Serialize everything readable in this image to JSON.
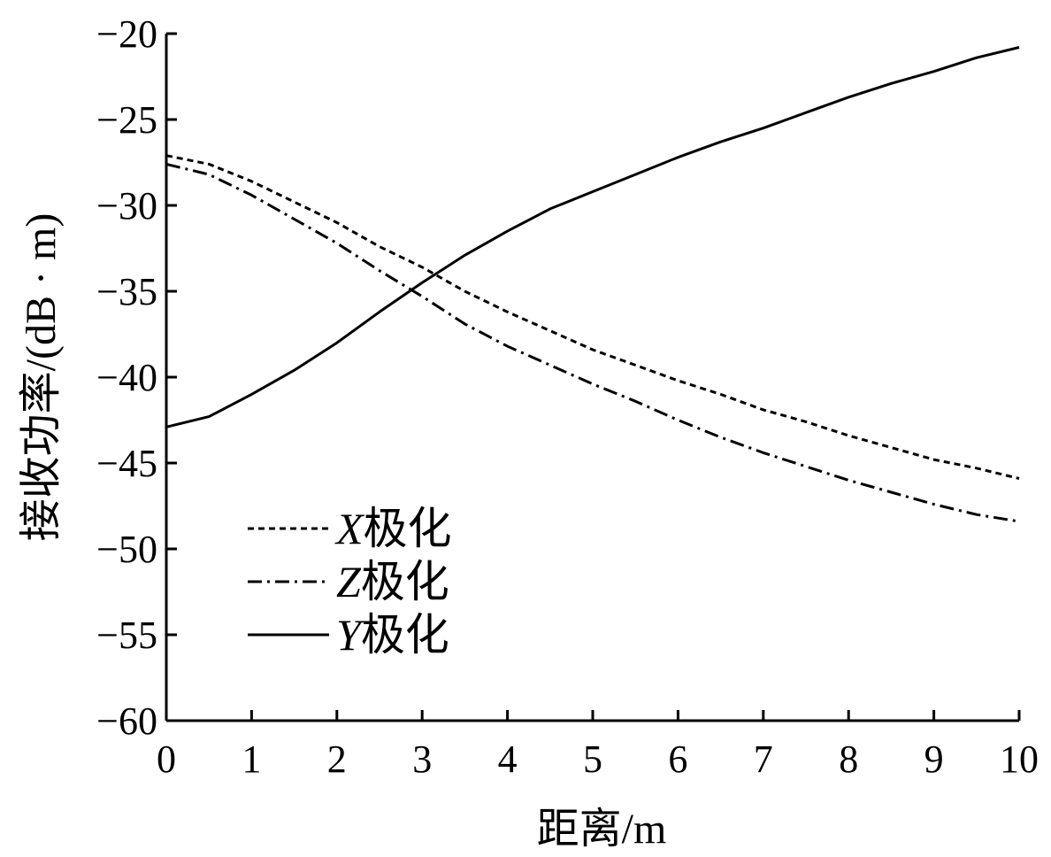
{
  "chart_data": {
    "type": "line",
    "xlabel": "距离/m",
    "ylabel": "接收功率/(dB · m)",
    "xlim": [
      0,
      10
    ],
    "ylim": [
      -60,
      -20
    ],
    "xticks": [
      "0",
      "1",
      "2",
      "3",
      "4",
      "5",
      "6",
      "7",
      "8",
      "9",
      "10"
    ],
    "yticks": [
      "−60",
      "−55",
      "−50",
      "−45",
      "−40",
      "−35",
      "−30",
      "−25",
      "−20"
    ],
    "grid": false,
    "legend_position": "lower-left",
    "x": [
      0,
      0.5,
      1,
      1.5,
      2,
      2.5,
      3,
      3.5,
      4,
      4.5,
      5,
      5.5,
      6,
      6.5,
      7,
      7.5,
      8,
      8.5,
      9,
      9.5,
      10
    ],
    "series": [
      {
        "name": "X",
        "legend_suffix": "极化",
        "style": "dotted",
        "values": [
          -27.1,
          -27.6,
          -28.6,
          -29.8,
          -31.0,
          -32.4,
          -33.6,
          -35.0,
          -36.2,
          -37.3,
          -38.4,
          -39.3,
          -40.2,
          -41.0,
          -41.9,
          -42.6,
          -43.4,
          -44.1,
          -44.8,
          -45.3,
          -45.9
        ]
      },
      {
        "name": "Z",
        "legend_suffix": "极化",
        "style": "dashdot",
        "values": [
          -27.6,
          -28.2,
          -29.4,
          -30.8,
          -32.2,
          -33.8,
          -35.3,
          -36.9,
          -38.2,
          -39.3,
          -40.4,
          -41.4,
          -42.5,
          -43.5,
          -44.4,
          -45.2,
          -46.0,
          -46.7,
          -47.4,
          -48.0,
          -48.4
        ]
      },
      {
        "name": "Y",
        "legend_suffix": "极化",
        "style": "solid",
        "values": [
          -42.9,
          -42.3,
          -41.0,
          -39.6,
          -38.0,
          -36.2,
          -34.5,
          -32.9,
          -31.5,
          -30.2,
          -29.2,
          -28.2,
          -27.2,
          -26.3,
          -25.5,
          -24.6,
          -23.7,
          -22.9,
          -22.2,
          -21.4,
          -20.8
        ]
      }
    ]
  }
}
